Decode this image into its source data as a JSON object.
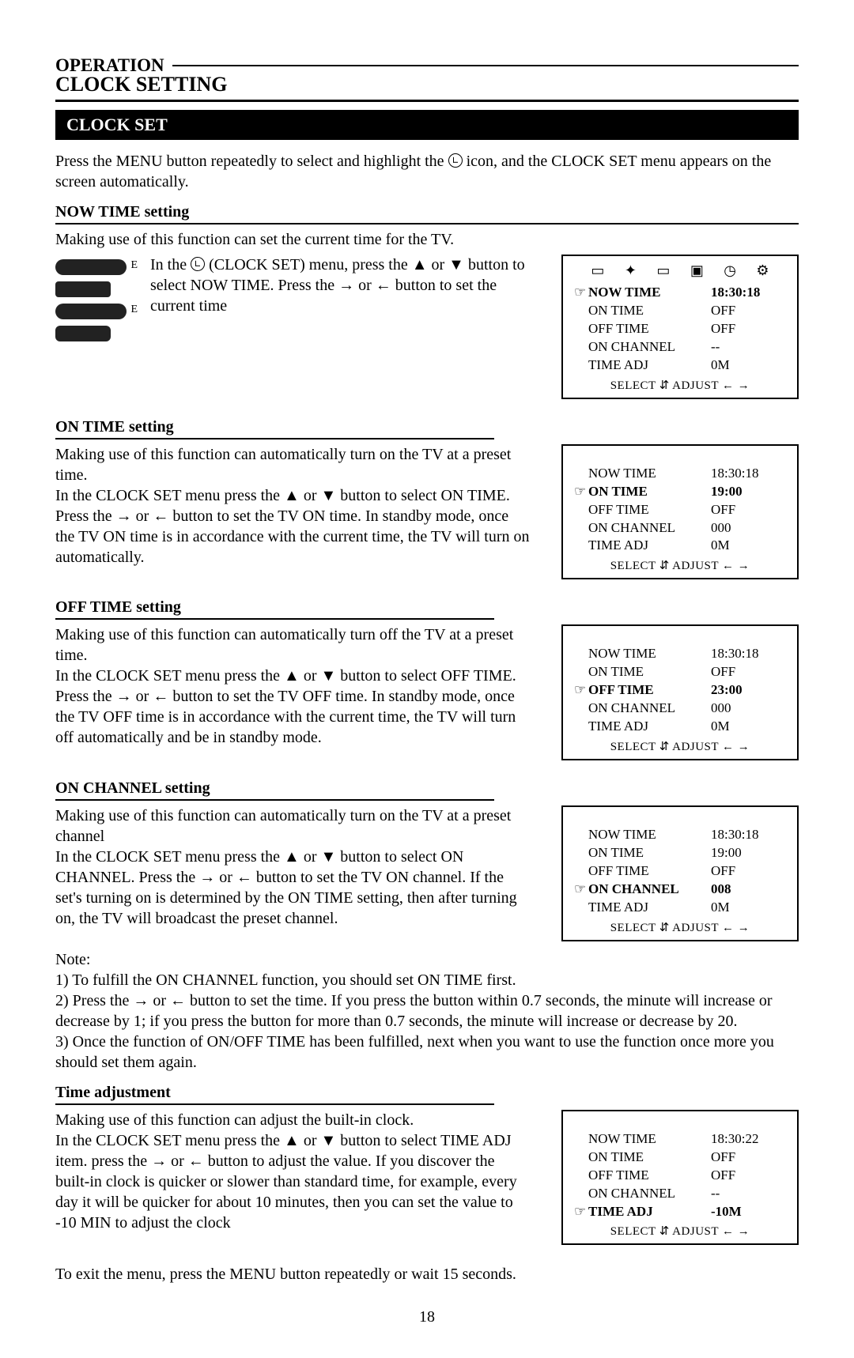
{
  "page_number": "18",
  "header": {
    "operation": "OPERATION",
    "title": "CLOCK SETTING",
    "bar": "CLOCK SET"
  },
  "intro": "Press the MENU button repeatedly to select and highlight the ⊕ icon, and the CLOCK SET menu appears on the screen automatically.",
  "sections": {
    "now_time": {
      "label": "NOW TIME setting",
      "lead": "Making use of this function can set the current time for the TV.",
      "body": "In the ⊕ (CLOCK SET) menu, press the ▲ or ▼ button to select NOW TIME. Press the → or ← button to set the current time"
    },
    "on_time": {
      "label": "ON TIME setting",
      "body": "Making use of this function can automatically turn on the TV at a preset time.\nIn the CLOCK SET menu press the ▲ or ▼ button to select ON TIME. Press the → or ← button to set the TV ON time. In standby mode, once the TV ON time is in accordance with the current time, the TV will turn on automatically."
    },
    "off_time": {
      "label": "OFF TIME setting",
      "body": "Making use of this function can automatically turn off the TV at a preset time.\nIn the CLOCK SET menu press the ▲ or ▼ button to select OFF TIME. Press the → or ← button to set the TV OFF time. In standby mode, once the TV OFF time is in accordance with the current time, the TV will turn off automatically and be in standby mode."
    },
    "on_channel": {
      "label": "ON CHANNEL setting",
      "body": "Making use of this function can automatically turn on the TV at a preset channel\nIn the CLOCK SET menu press the ▲ or ▼ button to select ON CHANNEL. Press the → or ← button to set the TV ON channel. If the set's turning on is determined by the ON TIME setting, then after turning on, the TV will broadcast the preset channel.",
      "note_label": "Note:",
      "note1": "1) To fulfill the ON CHANNEL function, you should set ON TIME first.",
      "note2": "2) Press the → or ← button to set the time. If you press the button within 0.7 seconds, the minute will increase or decrease by 1; if you press the button for more than 0.7 seconds, the minute will increase or decrease by 20.",
      "note3": "3) Once the function of ON/OFF TIME has been fulfilled, next when you want to use the function once more you should set them again."
    },
    "time_adj": {
      "label": "Time adjustment",
      "body": "Making use of this function can adjust the built-in clock.\nIn the CLOCK SET menu press the ▲ or ▼ button to select TIME ADJ item. press the → or ← button to adjust the value. If you discover the built-in clock is quicker or slower than standard time, for example, every day it will be quicker for about 10 minutes, then you can set the value to -10 MIN to adjust the clock"
    }
  },
  "exit": "To exit the menu, press the MENU button repeatedly or wait 15 seconds.",
  "osd_footer": "SELECT ⇵  ADJUST ← →",
  "osd_labels": {
    "now_time": "NOW TIME",
    "on_time": "ON TIME",
    "off_time": "OFF TIME",
    "on_channel": "ON CHANNEL",
    "time_adj": "TIME ADJ"
  },
  "osd": {
    "menu1": {
      "selected": 0,
      "vals": [
        "18:30:18",
        "OFF",
        "OFF",
        "--",
        "0M"
      ]
    },
    "menu2": {
      "selected": 1,
      "vals": [
        "18:30:18",
        "19:00",
        "OFF",
        "000",
        "0M"
      ]
    },
    "menu3": {
      "selected": 2,
      "vals": [
        "18:30:18",
        "OFF",
        "23:00",
        "000",
        "0M"
      ]
    },
    "menu4": {
      "selected": 3,
      "vals": [
        "18:30:18",
        "19:00",
        "OFF",
        "008",
        "0M"
      ]
    },
    "menu5": {
      "selected": 4,
      "vals": [
        "18:30:22",
        "OFF",
        "OFF",
        "--",
        "-10M"
      ]
    }
  },
  "colors": {
    "text": "#000000",
    "bg": "#ffffff",
    "bar_bg": "#000000",
    "bar_fg": "#ffffff"
  }
}
